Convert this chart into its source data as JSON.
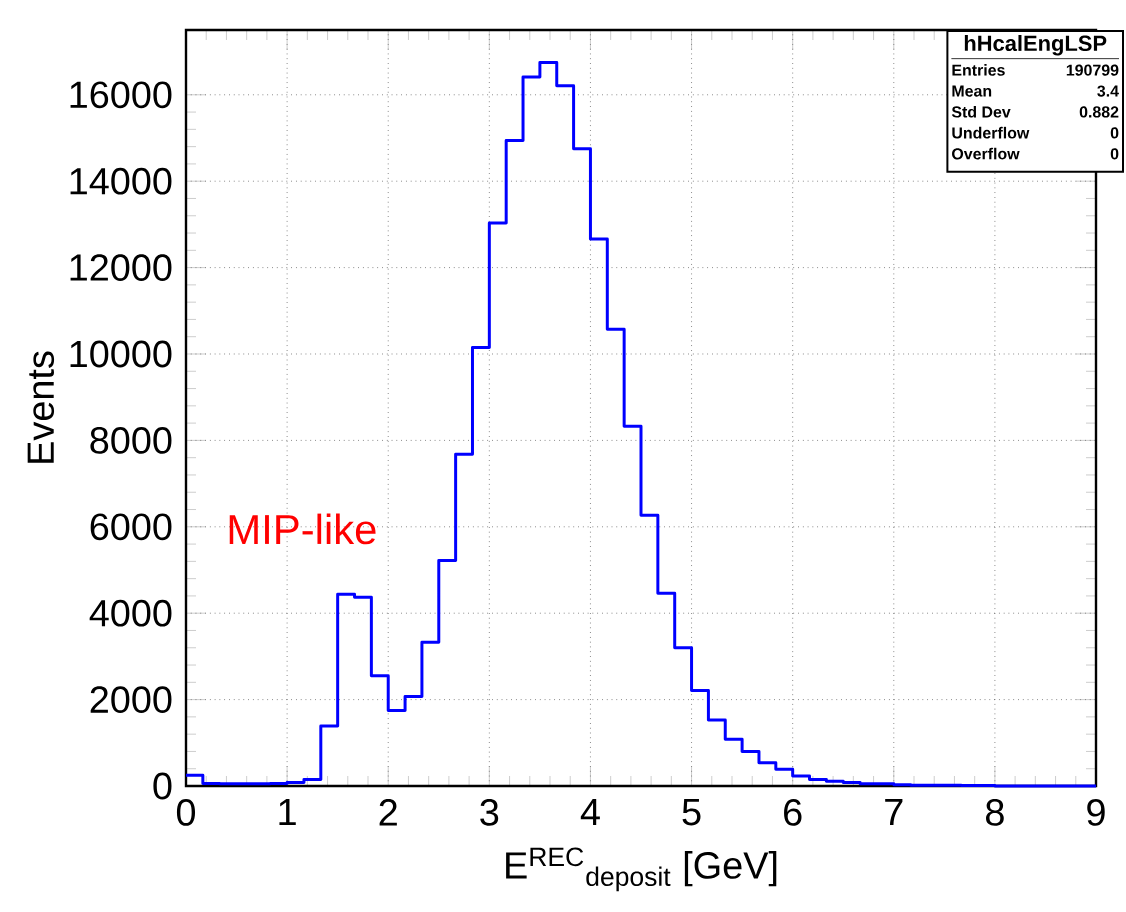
{
  "chart_data": {
    "type": "histogram",
    "xlabel": "E$^{REC}$$_{deposit}$ [GeV]",
    "ylabel": "Events",
    "bins": [
      0,
      0.1667,
      0.3333,
      0.5,
      0.6667,
      0.8333,
      1,
      1.1667,
      1.3333,
      1.5,
      1.6667,
      1.8333,
      2,
      2.1667,
      2.3333,
      2.5,
      2.6667,
      2.8333,
      3,
      3.1667,
      3.3333,
      3.5,
      3.6667,
      3.8333,
      4,
      4.1667,
      4.3333,
      4.5,
      4.6667,
      4.8333,
      5,
      5.1667,
      5.3333,
      5.5,
      5.6667,
      5.8333,
      6,
      6.1667,
      6.3333,
      6.5,
      6.6667,
      6.8333,
      7,
      7.1667,
      7.3333,
      7.5,
      7.6667,
      7.8333,
      8,
      8.1667,
      8.3333,
      8.5,
      8.6667,
      8.8333,
      9
    ],
    "values": [
      250,
      60,
      50,
      50,
      50,
      60,
      80,
      150,
      1390,
      4440,
      4370,
      2550,
      1750,
      2070,
      3330,
      5220,
      7680,
      10150,
      13030,
      14940,
      16410,
      16750,
      16210,
      14750,
      12660,
      10570,
      8330,
      6270,
      4460,
      3200,
      2210,
      1530,
      1080,
      800,
      540,
      390,
      230,
      150,
      110,
      80,
      50,
      50,
      30,
      20,
      20,
      20,
      10,
      10,
      0,
      0,
      0,
      0,
      0,
      0
    ],
    "color": "#0000ff",
    "xlim": [
      0,
      9
    ],
    "ylim": [
      0,
      17500
    ],
    "xticks": [
      0,
      1,
      2,
      3,
      4,
      5,
      6,
      7,
      8,
      9
    ],
    "yticks": [
      0,
      2000,
      4000,
      6000,
      8000,
      10000,
      12000,
      14000,
      16000
    ],
    "grid": true,
    "annotations": [
      "MIP-like",
      "hHcalEngLSP",
      "Entries",
      "190799",
      "Mean",
      "3.4",
      "Std Dev",
      "0.882",
      "Underflow",
      "0",
      "Overflow",
      "0"
    ]
  }
}
